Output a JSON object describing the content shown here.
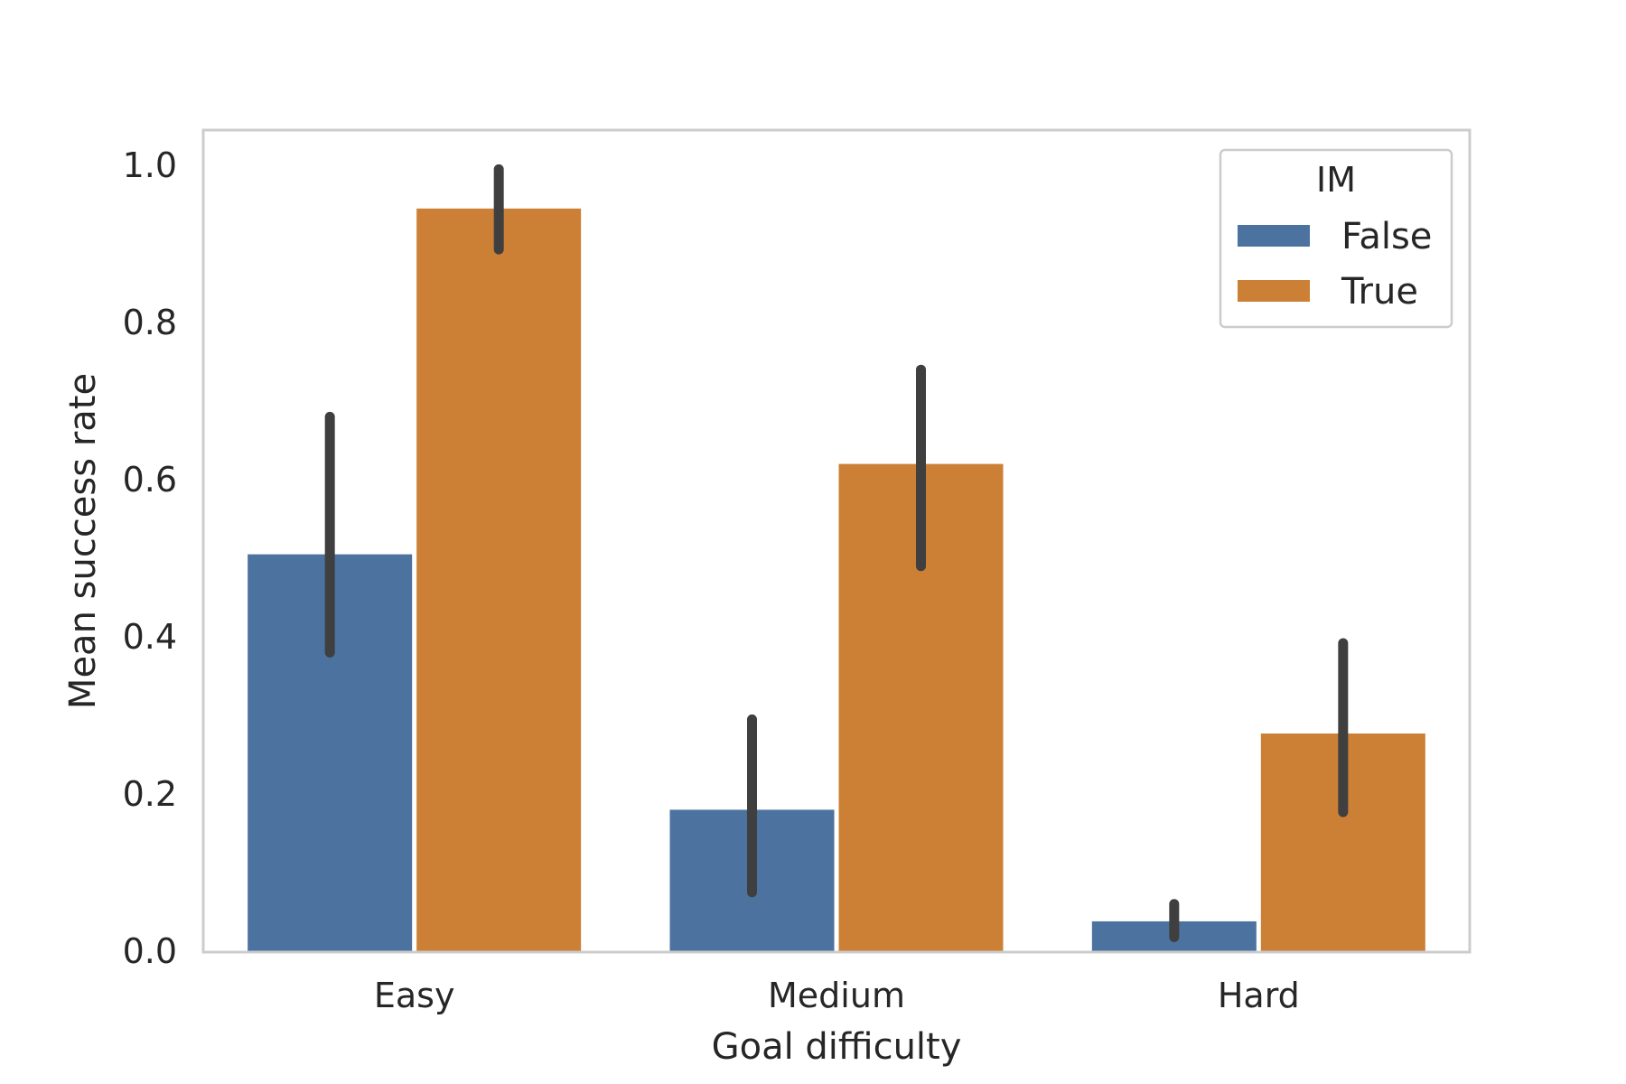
{
  "chart_data": {
    "type": "bar",
    "title": "",
    "xlabel": "Goal difficulty",
    "ylabel": "Mean success rate",
    "categories": [
      "Easy",
      "Medium",
      "Hard"
    ],
    "ylim": [
      0,
      1.04
    ],
    "yticks": [
      "0.0",
      "0.2",
      "0.4",
      "0.6",
      "0.8",
      "1.0"
    ],
    "grid": false,
    "legend": {
      "title": "IM",
      "position": "top-right"
    },
    "series": [
      {
        "name": "False",
        "color": "#4c72a0",
        "values": [
          0.505,
          0.18,
          0.038
        ],
        "ci_low": [
          0.38,
          0.075,
          0.018
        ],
        "ci_high": [
          0.68,
          0.295,
          0.06
        ]
      },
      {
        "name": "True",
        "color": "#cc8036",
        "values": [
          0.945,
          0.62,
          0.277
        ],
        "ci_low": [
          0.893,
          0.49,
          0.177
        ],
        "ci_high": [
          0.995,
          0.74,
          0.392
        ]
      }
    ],
    "errorbar_color": "#3f3f3f"
  }
}
